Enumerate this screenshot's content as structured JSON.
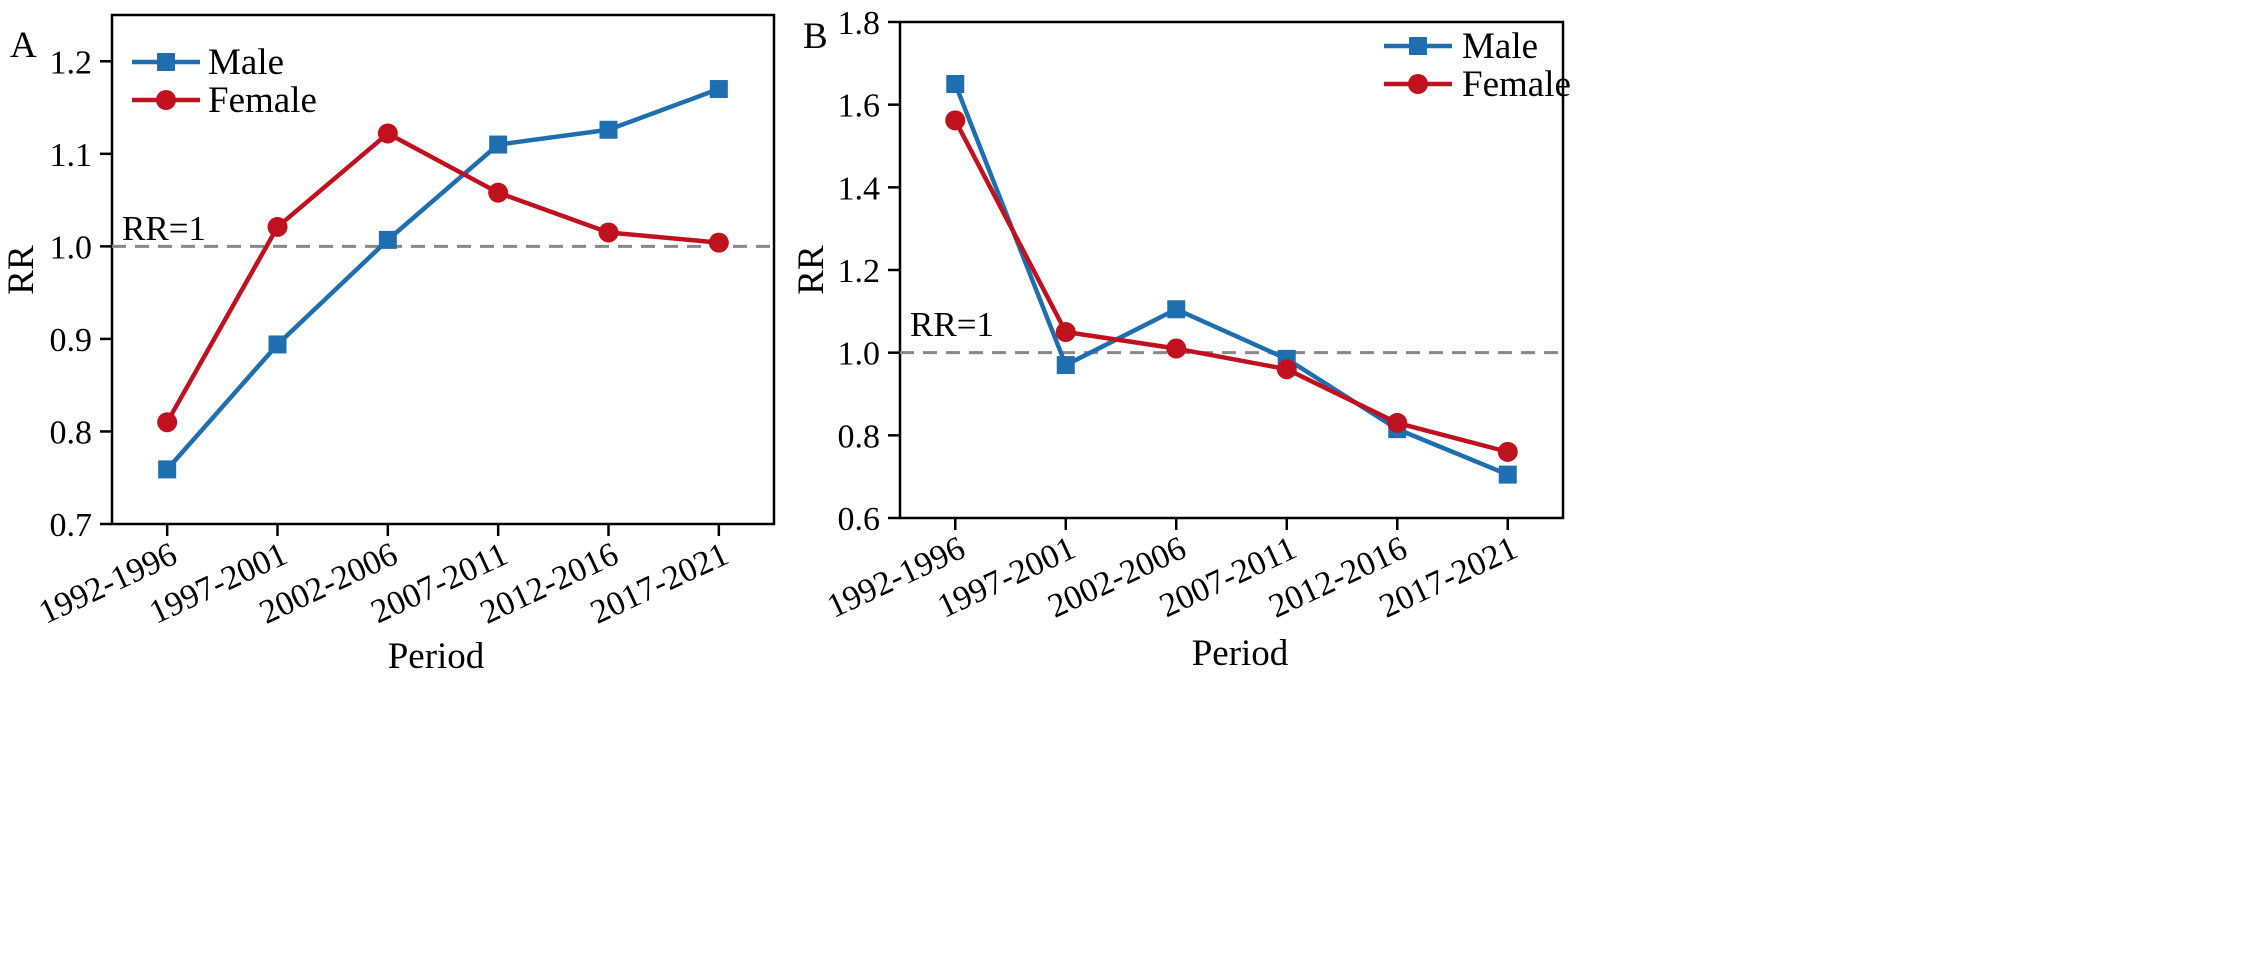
{
  "figure": {
    "colors": {
      "male": "#1f6fb0",
      "female": "#c0111f",
      "reference": "#888888",
      "axis": "#000000"
    }
  },
  "chart_data": [
    {
      "panel": "A",
      "type": "line",
      "categories": [
        "1992-1996",
        "1997-2001",
        "2002-2006",
        "2007-2011",
        "2012-2016",
        "2017-2021"
      ],
      "series": [
        {
          "name": "Male",
          "marker": "square",
          "values": [
            0.759,
            0.894,
            1.007,
            1.11,
            1.126,
            1.17
          ]
        },
        {
          "name": "Female",
          "marker": "circle",
          "values": [
            0.81,
            1.021,
            1.122,
            1.058,
            1.015,
            1.004
          ]
        }
      ],
      "xlabel": "Period",
      "ylabel": "RR",
      "ylim": [
        0.7,
        1.25
      ],
      "yticks": [
        0.7,
        0.8,
        0.9,
        1.0,
        1.1,
        1.2
      ],
      "ytick_labels": [
        "0.7",
        "0.8",
        "0.9",
        "1.0",
        "1.1",
        "1.2"
      ],
      "reference_line": {
        "y": 1.0,
        "label": "RR=1",
        "style": "dashed"
      },
      "legend_position": "top-left",
      "grid": false
    },
    {
      "panel": "B",
      "type": "line",
      "categories": [
        "1992-1996",
        "1997-2001",
        "2002-2006",
        "2007-2011",
        "2012-2016",
        "2017-2021"
      ],
      "series": [
        {
          "name": "Male",
          "marker": "square",
          "values": [
            1.65,
            0.97,
            1.105,
            0.985,
            0.815,
            0.705
          ]
        },
        {
          "name": "Female",
          "marker": "circle",
          "values": [
            1.562,
            1.05,
            1.01,
            0.96,
            0.83,
            0.76
          ]
        }
      ],
      "xlabel": "Period",
      "ylabel": "RR",
      "ylim": [
        0.6,
        1.8
      ],
      "yticks": [
        0.6,
        0.8,
        1.0,
        1.2,
        1.4,
        1.6,
        1.8
      ],
      "ytick_labels": [
        "0.6",
        "0.8",
        "1.0",
        "1.2",
        "1.4",
        "1.6",
        "1.8"
      ],
      "reference_line": {
        "y": 1.0,
        "label": "RR=1",
        "style": "dashed"
      },
      "legend_position": "top-right",
      "grid": false
    }
  ]
}
